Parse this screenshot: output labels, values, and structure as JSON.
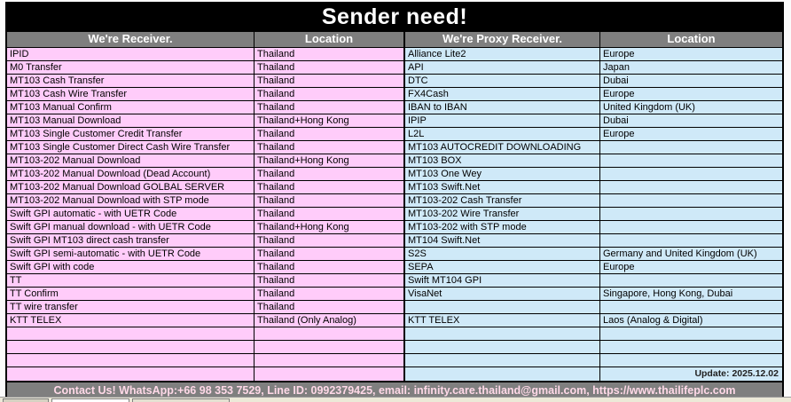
{
  "title": "Sender need!",
  "table": {
    "columns": [
      "We're Receiver.",
      "Location",
      "We're Proxy Receiver.",
      "Location"
    ],
    "rows": [
      [
        "IPID",
        "Thailand",
        "Alliance Lite2",
        "Europe"
      ],
      [
        "M0 Transfer",
        "Thailand",
        "API",
        "Japan"
      ],
      [
        "MT103 Cash Transfer",
        "Thailand",
        "DTC",
        "Dubai"
      ],
      [
        "MT103 Cash Wire Transfer",
        "Thailand",
        "FX4Cash",
        "Europe"
      ],
      [
        "MT103 Manual Confirm",
        "Thailand",
        "IBAN to IBAN",
        "United Kingdom (UK)"
      ],
      [
        "MT103 Manual Download",
        "Thailand+Hong Kong",
        "IPIP",
        "Dubai"
      ],
      [
        "MT103 Single Customer Credit Transfer",
        "Thailand",
        "L2L",
        "Europe"
      ],
      [
        "MT103 Single Customer Direct Cash Wire Transfer",
        "Thailand",
        "MT103 AUTOCREDIT DOWNLOADING",
        ""
      ],
      [
        "MT103-202 Manual Download",
        "Thailand+Hong Kong",
        "MT103 BOX",
        ""
      ],
      [
        "MT103-202 Manual Download (Dead Account)",
        "Thailand",
        "MT103 One Wey",
        ""
      ],
      [
        "MT103-202 Manual Download GOLBAL SERVER",
        "Thailand",
        "MT103 Swift.Net",
        ""
      ],
      [
        "MT103-202 Manual Download with STP mode",
        "Thailand",
        "MT103-202 Cash Transfer",
        ""
      ],
      [
        "Swift GPI automatic - with UETR Code",
        "Thailand",
        "MT103-202 Wire Transfer",
        ""
      ],
      [
        "Swift GPI manual download - with UETR Code",
        "Thailand+Hong Kong",
        "MT103-202 with STP mode",
        ""
      ],
      [
        "Swift GPI MT103 direct cash transfer",
        "Thailand",
        "MT104 Swift.Net",
        ""
      ],
      [
        "Swift GPI semi-automatic - with UETR Code",
        "Thailand",
        "S2S",
        "Germany and United Kingdom (UK)"
      ],
      [
        "Swift GPI with code",
        "Thailand",
        "SEPA",
        "Europe"
      ],
      [
        "TT",
        "Thailand",
        "Swift MT104 GPI",
        ""
      ],
      [
        "TT Confirm",
        "Thailand",
        "VisaNet",
        "Singapore, Hong Kong, Dubai"
      ],
      [
        "TT wire transfer",
        "Thailand",
        "",
        ""
      ],
      [
        "KTT TELEX",
        "Thailand (Only Analog)",
        "KTT TELEX",
        "Laos (Analog & Digital)"
      ],
      [
        "",
        "",
        "",
        ""
      ],
      [
        "",
        "",
        "",
        ""
      ],
      [
        "",
        "",
        "",
        ""
      ],
      [
        "",
        "",
        "",
        "Update: 2025.12.02"
      ]
    ]
  },
  "footer": "Contact Us! WhatsApp:+66 98 353 7529, Line ID: 0992379425, email: infinity.care.thailand@gmail.com,  https://www.thailifeplc.com",
  "colors": {
    "pink": "#ffccfa",
    "blue": "#cfe9f8",
    "header_bg": "#7f7f7f",
    "title_bg": "#000000",
    "footer_text": "#ffd9e8"
  }
}
